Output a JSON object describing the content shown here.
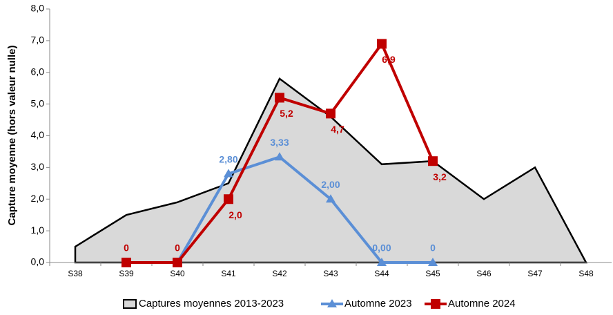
{
  "chart_data": {
    "type": "line",
    "y_label": "Capture moyenne (hors valeur nulle)",
    "categories": [
      "S38",
      "S39",
      "S40",
      "S41",
      "S42",
      "S43",
      "S44",
      "S45",
      "S46",
      "S47",
      "S48"
    ],
    "ylim": [
      0,
      8
    ],
    "yticks": [
      {
        "value": 0,
        "label": "0,0"
      },
      {
        "value": 1,
        "label": "1,0"
      },
      {
        "value": 2,
        "label": "2,0"
      },
      {
        "value": 3,
        "label": "3,0"
      },
      {
        "value": 4,
        "label": "4,0"
      },
      {
        "value": 5,
        "label": "5,0"
      },
      {
        "value": 6,
        "label": "6,0"
      },
      {
        "value": 7,
        "label": "7,0"
      },
      {
        "value": 8,
        "label": "8,0"
      }
    ],
    "grid": false,
    "legend": "bottom",
    "series": [
      {
        "name": "Captures moyennes 2013-2023",
        "kind": "area",
        "color": "#d9d9d9",
        "values": [
          0.5,
          1.5,
          1.9,
          2.5,
          5.8,
          4.6,
          3.1,
          3.2,
          2.0,
          3.0,
          0
        ]
      },
      {
        "name": "Automne 2023",
        "kind": "line",
        "marker": "triangle",
        "color": "#5b8fd6",
        "values": [
          null,
          null,
          0,
          2.8,
          3.33,
          2.0,
          0.0,
          0,
          null,
          null,
          null
        ],
        "value_labels": [
          null,
          null,
          null,
          "2,80",
          "3,33",
          "2,00",
          "0,00",
          "0",
          null,
          null,
          null
        ]
      },
      {
        "name": "Automne 2024",
        "kind": "line",
        "marker": "square",
        "color": "#c00000",
        "values": [
          null,
          0,
          0,
          2.0,
          5.2,
          4.7,
          6.9,
          3.2,
          null,
          null,
          null
        ],
        "value_labels": [
          null,
          "0",
          "0",
          "2,0",
          "5,2",
          "4,7",
          "6,9",
          "3,2",
          null,
          null,
          null
        ]
      }
    ]
  }
}
